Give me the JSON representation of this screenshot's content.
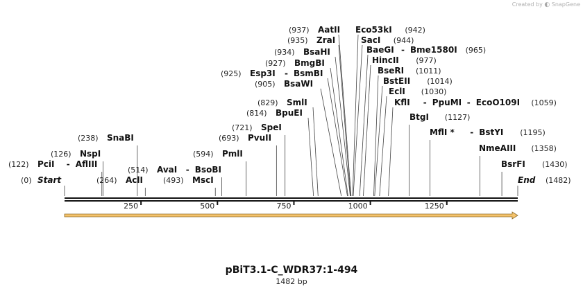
{
  "credit": {
    "text": "Created by",
    "brand": "SnapGene"
  },
  "sequence": {
    "name": "pBiT3.1-C_WDR37:1-494",
    "length_label": "1482 bp",
    "length": 1482
  },
  "ends": {
    "start": {
      "pos": "(0)",
      "label": "Start"
    },
    "end": {
      "pos": "(1482)",
      "label": "End"
    }
  },
  "ruler": {
    "ticks": [
      250,
      500,
      750,
      1000,
      1250
    ]
  },
  "feature": {
    "type": "arrow",
    "color": "#f5c36b",
    "from": 0,
    "to": 1482
  },
  "sites": [
    {
      "pos": "(122)",
      "names": [
        "PciI",
        "AflIII"
      ],
      "bp": 122
    },
    {
      "pos": "(126)",
      "names": [
        "NspI"
      ],
      "bp": 126
    },
    {
      "pos": "(238)",
      "names": [
        "SnaBI"
      ],
      "bp": 238
    },
    {
      "pos": "(264)",
      "names": [
        "AclI"
      ],
      "bp": 264
    },
    {
      "pos": "(493)",
      "names": [
        "MscI"
      ],
      "bp": 493
    },
    {
      "pos": "(514)",
      "names": [
        "AvaI",
        "BsoBI"
      ],
      "bp": 514
    },
    {
      "pos": "(594)",
      "names": [
        "PmlI"
      ],
      "bp": 594
    },
    {
      "pos": "(693)",
      "names": [
        "PvuII"
      ],
      "bp": 693
    },
    {
      "pos": "(721)",
      "names": [
        "SpeI"
      ],
      "bp": 721
    },
    {
      "pos": "(814)",
      "names": [
        "BpuEI"
      ],
      "bp": 814
    },
    {
      "pos": "(829)",
      "names": [
        "SmlI"
      ],
      "bp": 829
    },
    {
      "pos": "(905)",
      "names": [
        "BsaWI"
      ],
      "bp": 905
    },
    {
      "pos": "(925)",
      "names": [
        "Esp3I",
        "BsmBI"
      ],
      "bp": 925
    },
    {
      "pos": "(927)",
      "names": [
        "BmgBI"
      ],
      "bp": 927
    },
    {
      "pos": "(934)",
      "names": [
        "BsaHI"
      ],
      "bp": 934
    },
    {
      "pos": "(935)",
      "names": [
        "ZraI"
      ],
      "bp": 935
    },
    {
      "pos": "(937)",
      "names": [
        "AatII"
      ],
      "bp": 937
    },
    {
      "pos": "(942)",
      "names": [
        "Eco53kI"
      ],
      "bp": 942
    },
    {
      "pos": "(944)",
      "names": [
        "SacI"
      ],
      "bp": 944
    },
    {
      "pos": "(965)",
      "names": [
        "BaeGI",
        "Bme1580I"
      ],
      "bp": 965
    },
    {
      "pos": "(977)",
      "names": [
        "HincII"
      ],
      "bp": 977
    },
    {
      "pos": "(1011)",
      "names": [
        "BseRI"
      ],
      "bp": 1011
    },
    {
      "pos": "(1014)",
      "names": [
        "BstEII"
      ],
      "bp": 1014
    },
    {
      "pos": "(1030)",
      "names": [
        "EclI"
      ],
      "bp": 1030
    },
    {
      "pos": "(1059)",
      "names": [
        "KflI",
        "PpuMI",
        "EcoO109I"
      ],
      "bp": 1059
    },
    {
      "pos": "(1127)",
      "names": [
        "BtgI"
      ],
      "bp": 1127
    },
    {
      "pos": "(1195)",
      "names": [
        "MflI *",
        "BstYI"
      ],
      "bp": 1195
    },
    {
      "pos": "(1358)",
      "names": [
        "NmeAIII"
      ],
      "bp": 1358
    },
    {
      "pos": "(1430)",
      "names": [
        "BsrFI"
      ],
      "bp": 1430
    }
  ]
}
